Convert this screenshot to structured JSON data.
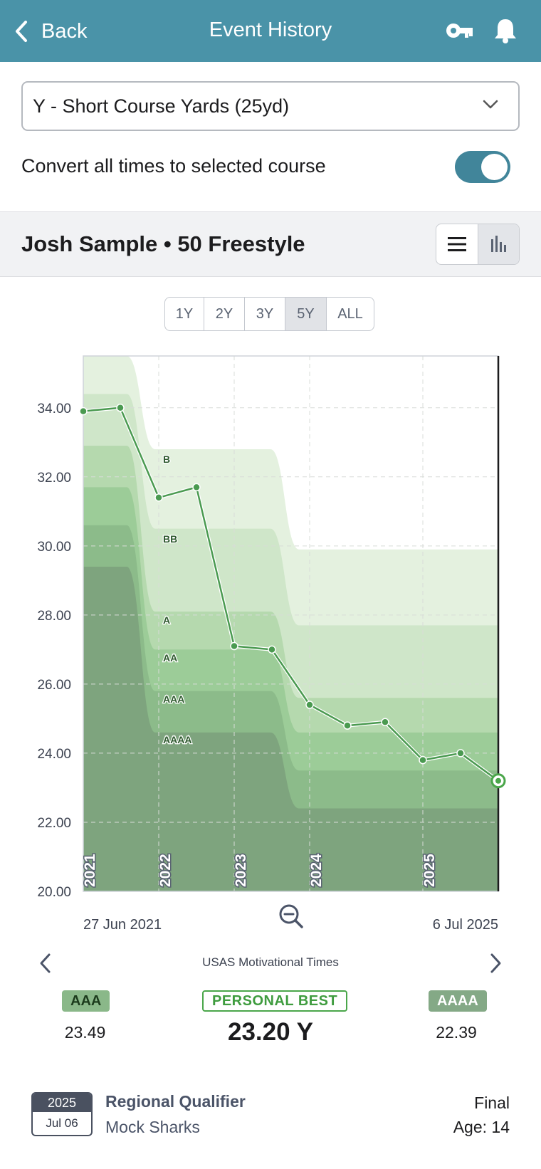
{
  "header": {
    "back_label": "Back",
    "title": "Event History"
  },
  "course_select": {
    "value": "Y - Short Course Yards (25yd)"
  },
  "convert": {
    "label": "Convert all times to selected course",
    "enabled": true
  },
  "swimmer": {
    "title": "Josh Sample • 50 Freestyle"
  },
  "ranges": [
    {
      "label": "1Y"
    },
    {
      "label": "2Y"
    },
    {
      "label": "3Y"
    },
    {
      "label": "5Y",
      "active": true
    },
    {
      "label": "ALL"
    }
  ],
  "chart_data": {
    "type": "line",
    "ylim": [
      20,
      35.5
    ],
    "yticks": [
      "34.00",
      "32.00",
      "30.00",
      "28.00",
      "26.00",
      "24.00",
      "22.00",
      "20.00"
    ],
    "years": [
      "2021",
      "2022",
      "2023",
      "2024",
      "2025"
    ],
    "x_start_label": "27 Jun 2021",
    "x_end_label": "6 Jul 2025",
    "series": [
      {
        "values": [
          33.9,
          34.0,
          31.4,
          31.7,
          27.1,
          27.0,
          25.4,
          24.8,
          24.9,
          23.8,
          24.0,
          23.2
        ]
      }
    ],
    "bands": [
      {
        "label": "B",
        "levels": [
          35.5,
          35.5,
          32.8,
          32.8,
          29.9,
          29.9
        ],
        "color": "#e4f1df"
      },
      {
        "label": "BB",
        "levels": [
          34.4,
          34.4,
          30.5,
          30.5,
          27.7,
          27.7
        ],
        "color": "#cfe6c9"
      },
      {
        "label": "A",
        "levels": [
          32.9,
          32.9,
          28.1,
          28.1,
          25.6,
          25.6
        ],
        "color": "#b5d9ae"
      },
      {
        "label": "AA",
        "levels": [
          31.7,
          31.7,
          27.0,
          27.0,
          24.6,
          24.6
        ],
        "color": "#9ccc98"
      },
      {
        "label": "AAA",
        "levels": [
          30.6,
          30.6,
          25.8,
          25.8,
          23.5,
          23.5
        ],
        "color": "#8cbb8a"
      },
      {
        "label": "AAAA",
        "levels": [
          29.4,
          29.4,
          24.6,
          24.6,
          22.4,
          22.4
        ],
        "color": "#7ea47e"
      }
    ]
  },
  "standards": {
    "name": "USAS Motivational Times",
    "left": {
      "label": "AAA",
      "value": "23.49"
    },
    "center": {
      "label": "PERSONAL BEST",
      "value": "23.20 Y"
    },
    "right": {
      "label": "AAAA",
      "value": "22.39"
    }
  },
  "result": {
    "year": "2025",
    "date": "Jul 06",
    "meet": "Regional Qualifier",
    "team": "Mock Sharks",
    "round": "Final",
    "age": "Age: 14"
  }
}
